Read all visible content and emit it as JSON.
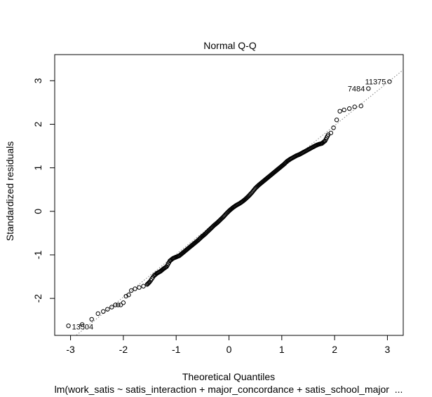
{
  "chart_data": {
    "type": "scatter",
    "title": "Normal Q-Q",
    "xlabel": "Theoretical Quantiles",
    "ylabel": "Standardized residuals",
    "subtitle": "lm(work_satis ~ satis_interaction + major_concordance + satis_school_major  ...",
    "xlim": [
      -3.3,
      3.3
    ],
    "ylim": [
      -2.85,
      3.6
    ],
    "x_ticks": [
      -3,
      -2,
      -1,
      0,
      1,
      2,
      3
    ],
    "y_ticks": [
      -2,
      -1,
      0,
      1,
      2,
      3
    ],
    "x_tick_labels": [
      "-3",
      "-2",
      "-1",
      "0",
      "1",
      "2",
      "3"
    ],
    "y_tick_labels": [
      "-2",
      "-1",
      "0",
      "1",
      "2",
      "3"
    ],
    "reference_line": {
      "slope": 0.985,
      "intercept": 0.0,
      "style": "dotted",
      "color": "#808080"
    },
    "labeled_points": [
      {
        "label": "11375",
        "x": 3.04,
        "y": 2.98
      },
      {
        "label": "7484",
        "x": 2.64,
        "y": 2.82
      },
      {
        "label": "13504",
        "x": -3.04,
        "y": -2.63
      }
    ],
    "points": [
      {
        "x": -3.04,
        "y": -2.63
      },
      {
        "x": -2.78,
        "y": -2.6
      },
      {
        "x": -2.6,
        "y": -2.48
      },
      {
        "x": -2.48,
        "y": -2.35
      },
      {
        "x": -2.38,
        "y": -2.3
      },
      {
        "x": -2.3,
        "y": -2.25
      },
      {
        "x": -2.22,
        "y": -2.2
      },
      {
        "x": -2.15,
        "y": -2.15
      },
      {
        "x": -2.1,
        "y": -2.15
      },
      {
        "x": -2.05,
        "y": -2.15
      },
      {
        "x": -2.0,
        "y": -2.1
      },
      {
        "x": -1.95,
        "y": -1.95
      },
      {
        "x": -1.9,
        "y": -1.92
      },
      {
        "x": -1.85,
        "y": -1.82
      },
      {
        "x": -1.78,
        "y": -1.78
      },
      {
        "x": -1.7,
        "y": -1.75
      },
      {
        "x": -1.62,
        "y": -1.72
      },
      {
        "x": -1.55,
        "y": -1.68
      },
      {
        "x": -1.5,
        "y": -1.62
      },
      {
        "x": -1.42,
        "y": -1.48
      },
      {
        "x": -1.36,
        "y": -1.42
      },
      {
        "x": -1.3,
        "y": -1.38
      },
      {
        "x": -1.24,
        "y": -1.32
      },
      {
        "x": -1.18,
        "y": -1.27
      },
      {
        "x": -1.12,
        "y": -1.14
      },
      {
        "x": -1.06,
        "y": -1.08
      },
      {
        "x": -1.0,
        "y": -1.05
      },
      {
        "x": -0.94,
        "y": -1.02
      },
      {
        "x": -0.88,
        "y": -0.96
      },
      {
        "x": -0.82,
        "y": -0.9
      },
      {
        "x": -0.76,
        "y": -0.84
      },
      {
        "x": -0.7,
        "y": -0.78
      },
      {
        "x": -0.64,
        "y": -0.72
      },
      {
        "x": -0.58,
        "y": -0.66
      },
      {
        "x": -0.52,
        "y": -0.59
      },
      {
        "x": -0.46,
        "y": -0.53
      },
      {
        "x": -0.4,
        "y": -0.46
      },
      {
        "x": -0.34,
        "y": -0.39
      },
      {
        "x": -0.28,
        "y": -0.32
      },
      {
        "x": -0.22,
        "y": -0.26
      },
      {
        "x": -0.16,
        "y": -0.19
      },
      {
        "x": -0.1,
        "y": -0.12
      },
      {
        "x": -0.04,
        "y": -0.04
      },
      {
        "x": 0.02,
        "y": 0.03
      },
      {
        "x": 0.08,
        "y": 0.09
      },
      {
        "x": 0.14,
        "y": 0.14
      },
      {
        "x": 0.2,
        "y": 0.18
      },
      {
        "x": 0.26,
        "y": 0.23
      },
      {
        "x": 0.32,
        "y": 0.29
      },
      {
        "x": 0.38,
        "y": 0.36
      },
      {
        "x": 0.44,
        "y": 0.44
      },
      {
        "x": 0.5,
        "y": 0.53
      },
      {
        "x": 0.56,
        "y": 0.6
      },
      {
        "x": 0.62,
        "y": 0.66
      },
      {
        "x": 0.68,
        "y": 0.72
      },
      {
        "x": 0.74,
        "y": 0.78
      },
      {
        "x": 0.8,
        "y": 0.84
      },
      {
        "x": 0.86,
        "y": 0.9
      },
      {
        "x": 0.92,
        "y": 0.96
      },
      {
        "x": 0.98,
        "y": 1.02
      },
      {
        "x": 1.04,
        "y": 1.08
      },
      {
        "x": 1.1,
        "y": 1.15
      },
      {
        "x": 1.16,
        "y": 1.2
      },
      {
        "x": 1.22,
        "y": 1.24
      },
      {
        "x": 1.28,
        "y": 1.28
      },
      {
        "x": 1.34,
        "y": 1.31
      },
      {
        "x": 1.4,
        "y": 1.35
      },
      {
        "x": 1.46,
        "y": 1.39
      },
      {
        "x": 1.52,
        "y": 1.43
      },
      {
        "x": 1.58,
        "y": 1.47
      },
      {
        "x": 1.64,
        "y": 1.51
      },
      {
        "x": 1.7,
        "y": 1.54
      },
      {
        "x": 1.76,
        "y": 1.56
      },
      {
        "x": 1.82,
        "y": 1.62
      },
      {
        "x": 1.88,
        "y": 1.76
      },
      {
        "x": 1.93,
        "y": 1.8
      },
      {
        "x": 1.98,
        "y": 1.92
      },
      {
        "x": 2.04,
        "y": 2.1
      },
      {
        "x": 2.1,
        "y": 2.3
      },
      {
        "x": 2.18,
        "y": 2.33
      },
      {
        "x": 2.28,
        "y": 2.36
      },
      {
        "x": 2.38,
        "y": 2.4
      },
      {
        "x": 2.5,
        "y": 2.42
      },
      {
        "x": 2.64,
        "y": 2.82
      },
      {
        "x": 3.04,
        "y": 2.98
      }
    ]
  }
}
